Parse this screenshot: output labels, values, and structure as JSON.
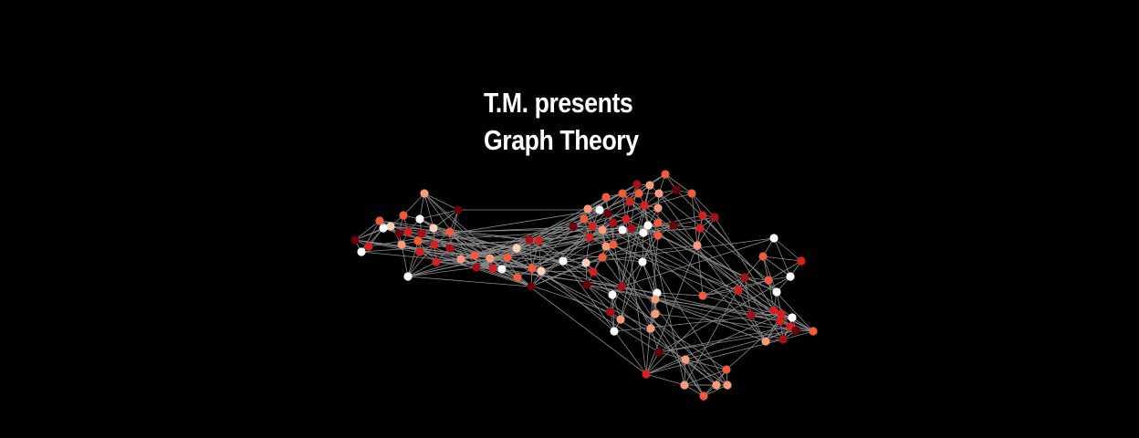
{
  "title": {
    "line1": "T.M. presents",
    "line2": "Graph Theory"
  },
  "colors": {
    "background": "#000000",
    "title_text": "#ffffff",
    "edge": "#8a8a8a",
    "node_palette": [
      "#ffffff",
      "#fcd0b8",
      "#fb9a7a",
      "#f15a3a",
      "#d42020",
      "#a50f15",
      "#67000d"
    ]
  }
}
